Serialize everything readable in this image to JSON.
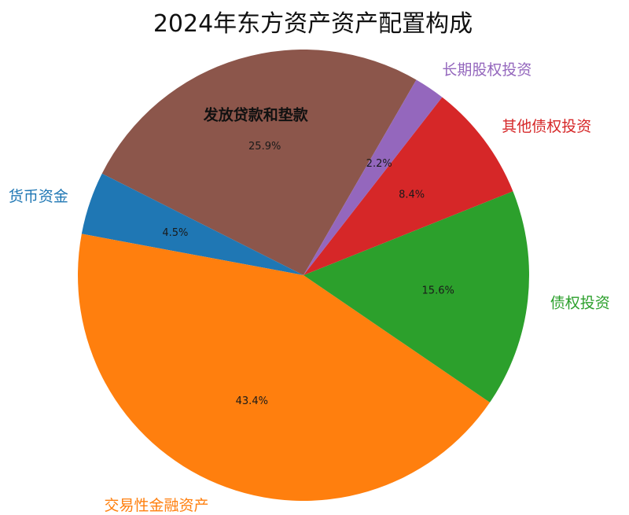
{
  "chart_data": {
    "type": "pie",
    "title": "2024年东方资产资产配置构成",
    "slices": [
      {
        "label": "发放贷款和垫款",
        "value": 25.9,
        "pct_label": "25.9%",
        "color": "#8c564b"
      },
      {
        "label": "货币资金",
        "value": 4.5,
        "pct_label": "4.5%",
        "color": "#1f77b4"
      },
      {
        "label": "交易性金融资产",
        "value": 43.4,
        "pct_label": "43.4%",
        "color": "#ff7f0e"
      },
      {
        "label": "债权投资",
        "value": 15.6,
        "pct_label": "15.6%",
        "color": "#2ca02c"
      },
      {
        "label": "其他债权投资",
        "value": 8.4,
        "pct_label": "8.4%",
        "color": "#d62728"
      },
      {
        "label": "长期股权投资",
        "value": 2.2,
        "pct_label": "2.2%",
        "color": "#9467bd"
      }
    ],
    "start_angle_deg": 60,
    "direction": "counterclockwise"
  }
}
